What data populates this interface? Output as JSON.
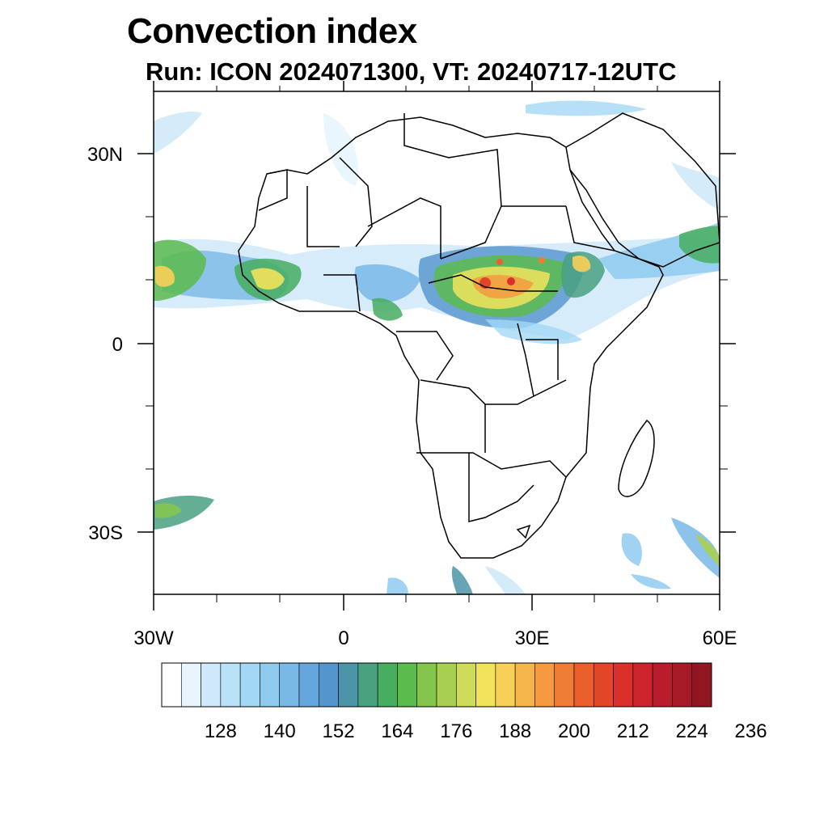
{
  "title": "Convection index",
  "subtitle": "Run: ICON 2024071300,  VT: 20240717-12UTC",
  "map": {
    "region": "Africa",
    "lat_labels": [
      "30N",
      "0",
      "30S"
    ],
    "lon_labels": [
      "30W",
      "0",
      "30E",
      "60E"
    ]
  },
  "colorbar": {
    "labels": [
      "128",
      "140",
      "152",
      "164",
      "176",
      "188",
      "200",
      "212",
      "224",
      "236"
    ],
    "colors": [
      "#ffffff",
      "#e8f5fd",
      "#cfe9fa",
      "#b9e1f8",
      "#a3d8f5",
      "#8ecbee",
      "#79b9e6",
      "#65a7dd",
      "#5395cd",
      "#4c94a8",
      "#49a180",
      "#47ad5f",
      "#5bbb4c",
      "#84c54e",
      "#a8cf52",
      "#cfdc5a",
      "#f1e35c",
      "#f8cf57",
      "#f7b64c",
      "#f59a40",
      "#f07d36",
      "#ea5f2d",
      "#e24528",
      "#d9302a",
      "#cd232d",
      "#b91c2b",
      "#a61a28",
      "#8e1722"
    ]
  }
}
